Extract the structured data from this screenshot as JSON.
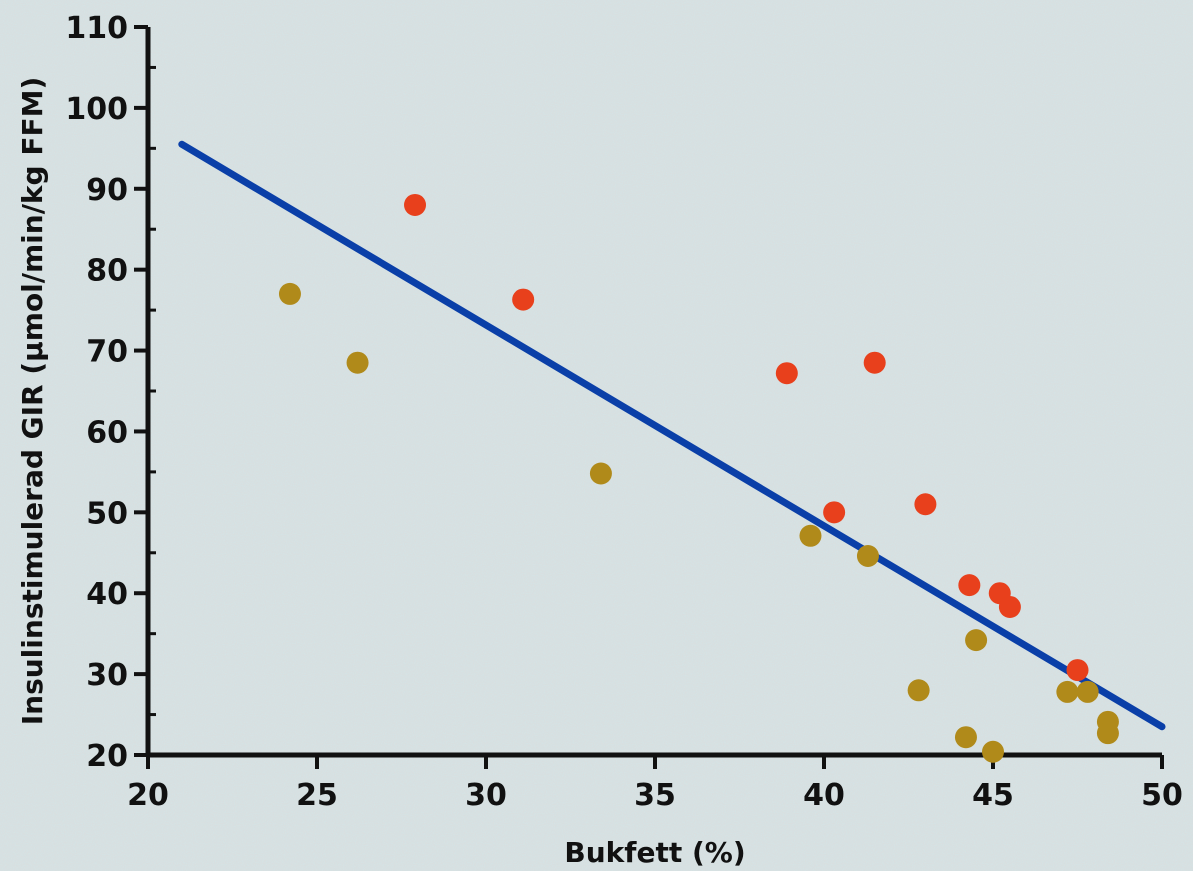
{
  "chart_data": {
    "type": "scatter",
    "title": "",
    "xlabel": "Bukfett (%)",
    "ylabel": "Insulinstimulerad GIR (µmol/min/kg FFM)",
    "xlim": [
      20,
      50
    ],
    "ylim": [
      20,
      110
    ],
    "x_ticks": [
      20,
      25,
      30,
      35,
      40,
      45,
      50
    ],
    "y_ticks": [
      20,
      30,
      40,
      50,
      60,
      70,
      80,
      90,
      100,
      110
    ],
    "grid": false,
    "legend": "none",
    "series": [
      {
        "color": "#e8401c",
        "points": [
          [
            27.9,
            88
          ],
          [
            31.1,
            76.3
          ],
          [
            38.9,
            67.2
          ],
          [
            41.5,
            68.5
          ],
          [
            40.3,
            50
          ],
          [
            43.0,
            51
          ],
          [
            44.3,
            41
          ],
          [
            45.2,
            40
          ],
          [
            45.5,
            38.3
          ],
          [
            47.5,
            30.5
          ]
        ]
      },
      {
        "color": "#b08a1a",
        "points": [
          [
            24.2,
            77
          ],
          [
            26.2,
            68.5
          ],
          [
            33.4,
            54.8
          ],
          [
            39.6,
            47.1
          ],
          [
            41.3,
            44.6
          ],
          [
            42.8,
            28
          ],
          [
            44.5,
            34.2
          ],
          [
            44.2,
            22.2
          ],
          [
            45.0,
            20.4
          ],
          [
            47.2,
            27.8
          ],
          [
            47.8,
            27.8
          ],
          [
            48.4,
            24.1
          ],
          [
            48.4,
            22.7
          ]
        ]
      }
    ],
    "trendline": {
      "color": "#0a3fa8",
      "x": [
        21,
        50
      ],
      "y": [
        95.5,
        23.5
      ]
    }
  }
}
